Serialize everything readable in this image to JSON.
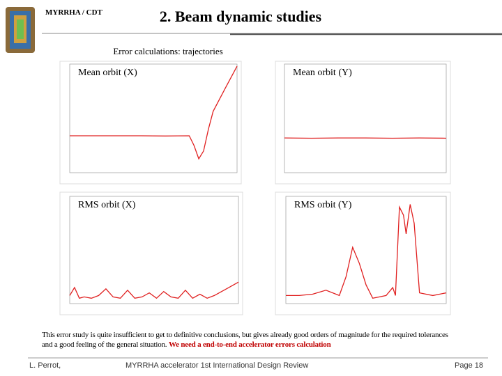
{
  "header": {
    "org": "MYRRHA / CDT",
    "title": "2. Beam dynamic studies"
  },
  "subtitle": "Error calculations: trajectories",
  "plots": [
    {
      "type": "line",
      "title": "Mean orbit (X)",
      "color": "#e02020",
      "xlim": [
        0,
        140
      ],
      "ylim": [
        -20,
        20
      ],
      "x": [
        0,
        20,
        40,
        60,
        80,
        100,
        104,
        108,
        112,
        116,
        120,
        130,
        140
      ],
      "values": [
        -6.4,
        -6.4,
        -6.4,
        -6.4,
        -6.5,
        -6.4,
        -10,
        -14.9,
        -12,
        -4,
        2.6,
        11,
        19.2
      ]
    },
    {
      "type": "line",
      "title": "Mean orbit (Y)",
      "color": "#e02020",
      "xlim": [
        0,
        120
      ],
      "ylim": [
        -20,
        20
      ],
      "x": [
        0,
        20,
        40,
        60,
        80,
        100,
        120
      ],
      "values": [
        -7.2,
        -7.3,
        -7.2,
        -7.2,
        -7.3,
        -7.2,
        -7.3
      ]
    },
    {
      "type": "line",
      "title": "RMS orbit (X)",
      "color": "#e02020",
      "xlim": [
        0,
        140
      ],
      "ylim": [
        0,
        4
      ],
      "x": [
        0,
        4,
        8,
        12,
        18,
        24,
        30,
        36,
        42,
        48,
        54,
        60,
        66,
        72,
        78,
        84,
        90,
        96,
        102,
        108,
        114,
        120,
        126,
        132,
        140
      ],
      "values": [
        0.3,
        0.6,
        0.2,
        0.25,
        0.2,
        0.3,
        0.55,
        0.25,
        0.2,
        0.5,
        0.2,
        0.25,
        0.4,
        0.2,
        0.45,
        0.25,
        0.2,
        0.5,
        0.2,
        0.35,
        0.2,
        0.3,
        0.45,
        0.6,
        0.8
      ]
    },
    {
      "type": "line",
      "title": "RMS orbit (Y)",
      "color": "#e02020",
      "xlim": [
        0,
        120
      ],
      "ylim": [
        0,
        4
      ],
      "x": [
        0,
        10,
        20,
        30,
        40,
        45,
        50,
        55,
        60,
        65,
        70,
        75,
        80,
        82,
        85,
        88,
        90,
        93,
        96,
        100,
        110,
        120
      ],
      "values": [
        0.3,
        0.3,
        0.35,
        0.5,
        0.3,
        1.0,
        2.1,
        1.5,
        0.7,
        0.2,
        0.25,
        0.3,
        0.6,
        0.3,
        3.6,
        3.3,
        2.6,
        3.7,
        3.0,
        0.4,
        0.3,
        0.4
      ]
    }
  ],
  "body": {
    "text": "This error study is quite insufficient to get to definitive conclusions, but gives already good orders of magnitude for the required tolerances and a good feeling of the general situation.",
    "emphasis": "We need a end-to-end accelerator errors calculation"
  },
  "footer": {
    "author": "L. Perrot,",
    "event": "MYRRHA accelerator 1st International Design Review",
    "page": "Page 18"
  }
}
